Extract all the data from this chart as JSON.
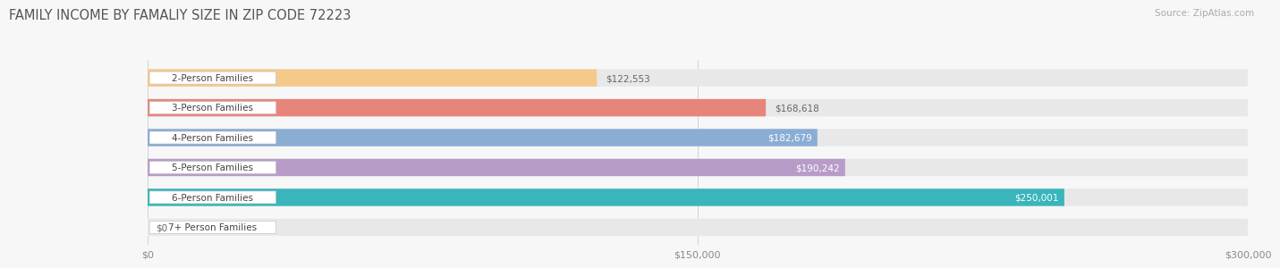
{
  "title": "FAMILY INCOME BY FAMALIY SIZE IN ZIP CODE 72223",
  "source": "Source: ZipAtlas.com",
  "categories": [
    "2-Person Families",
    "3-Person Families",
    "4-Person Families",
    "5-Person Families",
    "6-Person Families",
    "7+ Person Families"
  ],
  "values": [
    122553,
    168618,
    182679,
    190242,
    250001,
    0
  ],
  "labels": [
    "$122,553",
    "$168,618",
    "$182,679",
    "$190,242",
    "$250,001",
    "$0"
  ],
  "bar_colors": [
    "#F5C98A",
    "#E8857A",
    "#8AADD4",
    "#B89CC8",
    "#39B5BB",
    "#AABBEE"
  ],
  "value_label_inside": [
    false,
    false,
    true,
    true,
    true,
    false
  ],
  "xlim": [
    0,
    300000
  ],
  "xticks": [
    0,
    150000,
    300000
  ],
  "xticklabels": [
    "$0",
    "$150,000",
    "$300,000"
  ],
  "background_color": "#f7f7f7",
  "bar_height": 0.58,
  "title_fontsize": 10.5,
  "source_fontsize": 7.5,
  "label_fontsize": 7.5,
  "tick_fontsize": 8,
  "category_fontsize": 7.5
}
